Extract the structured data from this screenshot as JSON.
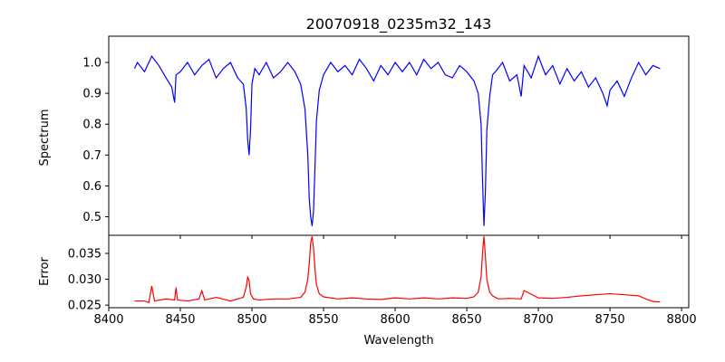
{
  "figure": {
    "title": "20070918_0235m32_143"
  },
  "colors": {
    "spectrum": "#0000ff",
    "error": "#ff0000",
    "axes": "#000000",
    "background": "#ffffff"
  },
  "chart_data": [
    {
      "type": "line",
      "panel": "top",
      "title": "20070918_0235m32_143",
      "xlabel": "",
      "ylabel": "Spectrum",
      "xlim": [
        8400,
        8805
      ],
      "ylim": [
        0.44,
        1.085
      ],
      "xticks": [
        8400,
        8450,
        8500,
        8550,
        8600,
        8650,
        8700,
        8750,
        8800
      ],
      "xtick_labels_visible": false,
      "yticks": [
        0.5,
        0.6,
        0.7,
        0.8,
        0.9,
        1.0
      ],
      "ytick_labels": [
        "0.5",
        "0.6",
        "0.7",
        "0.8",
        "0.9",
        "1.0"
      ],
      "grid": false,
      "series": [
        {
          "color": "#0000ff",
          "x": [
            8418,
            8420,
            8425,
            8430,
            8435,
            8440,
            8444,
            8446,
            8447,
            8450,
            8455,
            8460,
            8465,
            8470,
            8475,
            8480,
            8485,
            8490,
            8494,
            8496,
            8497,
            8498,
            8499,
            8500,
            8502,
            8505,
            8510,
            8515,
            8520,
            8525,
            8530,
            8534,
            8537,
            8539,
            8540,
            8541,
            8542,
            8543,
            8544,
            8545,
            8547,
            8550,
            8555,
            8560,
            8565,
            8570,
            8575,
            8580,
            8585,
            8590,
            8595,
            8600,
            8605,
            8610,
            8615,
            8620,
            8625,
            8630,
            8635,
            8640,
            8645,
            8650,
            8655,
            8658,
            8660,
            8661,
            8662,
            8663,
            8664,
            8666,
            8668,
            8670,
            8675,
            8680,
            8685,
            8688,
            8690,
            8695,
            8700,
            8705,
            8710,
            8715,
            8720,
            8725,
            8730,
            8735,
            8740,
            8745,
            8748,
            8750,
            8755,
            8760,
            8765,
            8770,
            8775,
            8780,
            8785
          ],
          "y": [
            0.98,
            1.0,
            0.97,
            1.02,
            0.99,
            0.95,
            0.92,
            0.87,
            0.96,
            0.97,
            1.0,
            0.96,
            0.99,
            1.01,
            0.95,
            0.98,
            1.0,
            0.95,
            0.93,
            0.85,
            0.75,
            0.7,
            0.78,
            0.93,
            0.98,
            0.96,
            1.0,
            0.95,
            0.97,
            1.0,
            0.97,
            0.93,
            0.85,
            0.7,
            0.56,
            0.5,
            0.47,
            0.52,
            0.66,
            0.81,
            0.91,
            0.96,
            1.0,
            0.97,
            0.99,
            0.96,
            1.01,
            0.98,
            0.94,
            0.99,
            0.96,
            1.0,
            0.97,
            1.0,
            0.96,
            1.01,
            0.98,
            1.0,
            0.96,
            0.95,
            0.99,
            0.97,
            0.94,
            0.9,
            0.8,
            0.62,
            0.47,
            0.58,
            0.78,
            0.89,
            0.96,
            0.97,
            1.0,
            0.94,
            0.96,
            0.89,
            0.99,
            0.95,
            1.02,
            0.96,
            0.99,
            0.93,
            0.98,
            0.94,
            0.97,
            0.92,
            0.95,
            0.9,
            0.86,
            0.91,
            0.94,
            0.89,
            0.95,
            1.0,
            0.96,
            0.99,
            0.98
          ]
        }
      ]
    },
    {
      "type": "line",
      "panel": "bottom",
      "xlabel": "Wavelength",
      "ylabel": "Error",
      "xlim": [
        8400,
        8805
      ],
      "ylim": [
        0.0245,
        0.0385
      ],
      "xticks": [
        8400,
        8450,
        8500,
        8550,
        8600,
        8650,
        8700,
        8750,
        8800
      ],
      "xtick_labels": [
        "8400",
        "8450",
        "8500",
        "8550",
        "8600",
        "8650",
        "8700",
        "8750",
        "8800"
      ],
      "yticks": [
        0.025,
        0.03,
        0.035
      ],
      "ytick_labels": [
        "0.025",
        "0.030",
        "0.035"
      ],
      "grid": false,
      "series": [
        {
          "color": "#ff0000",
          "x": [
            8418,
            8425,
            8428,
            8430,
            8432,
            8440,
            8446,
            8447,
            8448,
            8455,
            8463,
            8465,
            8467,
            8475,
            8485,
            8494,
            8496,
            8497,
            8498,
            8499,
            8501,
            8505,
            8515,
            8525,
            8534,
            8537,
            8539,
            8540,
            8541,
            8542,
            8543,
            8544,
            8545,
            8547,
            8550,
            8560,
            8570,
            8580,
            8590,
            8600,
            8610,
            8620,
            8630,
            8640,
            8650,
            8655,
            8658,
            8660,
            8661,
            8662,
            8663,
            8664,
            8666,
            8668,
            8672,
            8680,
            8688,
            8690,
            8700,
            8710,
            8720,
            8730,
            8740,
            8750,
            8760,
            8770,
            8775,
            8780,
            8785
          ],
          "y": [
            0.0258,
            0.0258,
            0.0255,
            0.0287,
            0.0258,
            0.0262,
            0.026,
            0.0284,
            0.026,
            0.0258,
            0.0262,
            0.0278,
            0.026,
            0.0265,
            0.0258,
            0.0265,
            0.0285,
            0.0304,
            0.0298,
            0.0272,
            0.0262,
            0.026,
            0.0262,
            0.0262,
            0.0265,
            0.0275,
            0.03,
            0.033,
            0.037,
            0.0383,
            0.036,
            0.032,
            0.029,
            0.0272,
            0.0266,
            0.0262,
            0.0264,
            0.0262,
            0.0261,
            0.0264,
            0.0262,
            0.0264,
            0.0262,
            0.0264,
            0.0263,
            0.0266,
            0.0275,
            0.0305,
            0.035,
            0.0383,
            0.0345,
            0.03,
            0.0275,
            0.0268,
            0.0262,
            0.0263,
            0.0262,
            0.0278,
            0.0264,
            0.0263,
            0.0265,
            0.0268,
            0.027,
            0.0272,
            0.027,
            0.0268,
            0.0262,
            0.0257,
            0.0256
          ]
        }
      ]
    }
  ]
}
